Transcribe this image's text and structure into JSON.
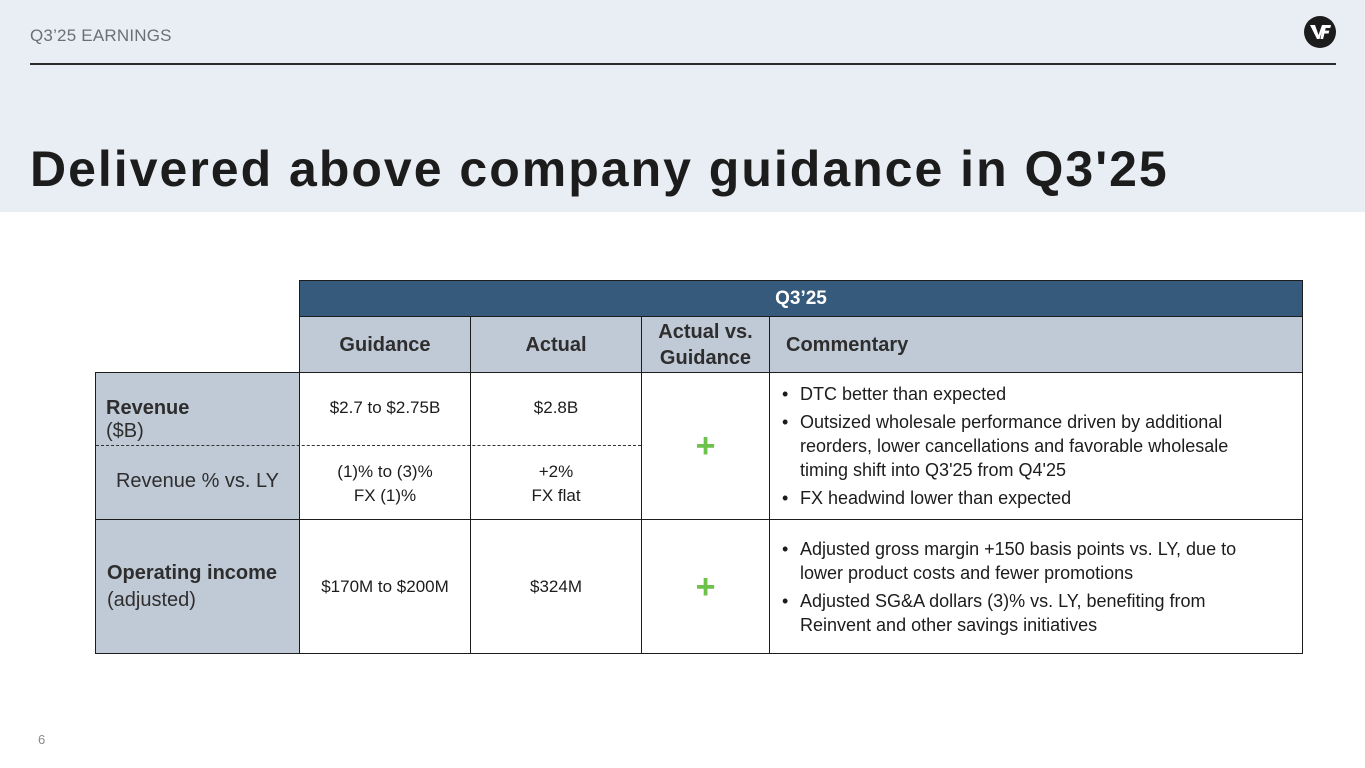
{
  "header": {
    "label": "Q3’25 EARNINGS",
    "logo_icon": "vf-logo-icon"
  },
  "title": "Delivered above company guidance in Q3'25",
  "page_number": "6",
  "table": {
    "period": "Q3’25",
    "columns": {
      "guidance": "Guidance",
      "actual": "Actual",
      "vs_line1": "Actual vs.",
      "vs_line2": "Guidance",
      "commentary": "Commentary"
    },
    "rows": {
      "revenue": {
        "label_bold": "Revenue",
        "label_rest": " ($B)",
        "guidance": "$2.7 to $2.75B",
        "actual": "$2.8B"
      },
      "revenue_pct": {
        "label": "Revenue % vs. LY",
        "guidance_line1": "(1)% to (3)%",
        "guidance_line2": "FX (1)%",
        "actual_line1": "+2%",
        "actual_line2": "FX flat"
      },
      "revenue_group": {
        "vs": "+",
        "commentary": [
          "DTC better than expected",
          "Outsized wholesale performance driven by additional reorders, lower cancellations and favorable wholesale timing shift into Q3'25 from Q4'25",
          "FX headwind lower than expected"
        ]
      },
      "operating_income": {
        "label_bold": "Operating income",
        "label_rest": "(adjusted)",
        "guidance": "$170M to $200M",
        "actual": "$324M",
        "vs": "+",
        "commentary": [
          "Adjusted gross margin +150 basis points vs. LY, due to lower product costs and fewer promotions",
          "Adjusted SG&A dollars (3)% vs. LY, benefiting from Reinvent and other savings initiatives"
        ]
      }
    }
  },
  "colors": {
    "band": "#e9eef4",
    "header_dark": "#365a7c",
    "header_light": "#c0c9d6",
    "plus": "#6cc24a"
  }
}
